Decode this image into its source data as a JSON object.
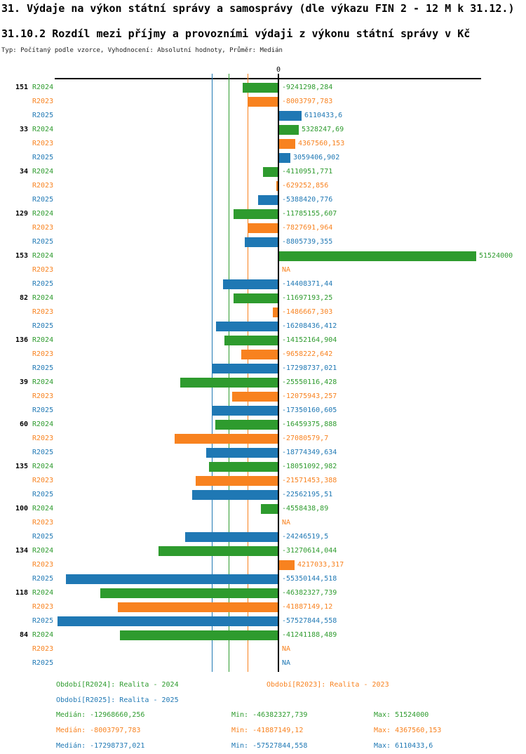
{
  "title": "31. Výdaje na výkon státní správy a samosprávy (dle výkazu FIN 2 - 12 M k 31.12.)",
  "subtitle": "31.10.2 Rozdíl mezi příjmy a provozními výdaji z výkonu státní správy v Kč",
  "meta": "Typ: Počítaný podle vzorce, Vyhodnocení: Absolutní hodnoty, Průměr: Medián",
  "colors": {
    "R2024": "#2e9b2e",
    "R2023": "#f8821f",
    "R2025": "#1f78b4",
    "axis": "#000000"
  },
  "chart_data": {
    "type": "bar",
    "orientation": "horizontal",
    "title": "31.10.2 Rozdíl mezi příjmy a provozními výdaji z výkonu státní správy v Kč",
    "xlabel": "",
    "ylabel": "",
    "zero_tick_label": "0",
    "x_domain": [
      -58320000,
      52830000
    ],
    "grid": "median reference lines per series",
    "legend_position": "bottom",
    "categories": [
      "151",
      "33",
      "34",
      "129",
      "153",
      "82",
      "136",
      "39",
      "60",
      "135",
      "100",
      "134",
      "118",
      "84"
    ],
    "series": [
      {
        "name": "R2024",
        "values": [
          -9241298.284,
          5328247.69,
          -4110951.771,
          -11785155.607,
          51524000,
          -11697193.25,
          -14152164.904,
          -25550116.428,
          -16459375.888,
          -18051092.982,
          -4558438.89,
          -31270614.044,
          -46382327.739,
          -41241188.489
        ],
        "labels": [
          "-9241298,284",
          "5328247,69",
          "-4110951,771",
          "-11785155,607",
          "51524000",
          "-11697193,25",
          "-14152164,904",
          "-25550116,428",
          "-16459375,888",
          "-18051092,982",
          "-4558438,89",
          "-31270614,044",
          "-46382327,739",
          "-41241188,489"
        ],
        "median": -12968660.256,
        "min": -46382327.739,
        "max": 51524000
      },
      {
        "name": "R2023",
        "values": [
          -8003797.783,
          4367560.153,
          -629252.856,
          -7827691.964,
          null,
          -1486667.303,
          -9658222.642,
          -12075943.257,
          -27080579.7,
          -21571453.388,
          null,
          4217033.317,
          -41887149.12,
          null
        ],
        "labels": [
          "-8003797,783",
          "4367560,153",
          "-629252,856",
          "-7827691,964",
          "NA",
          "-1486667,303",
          "-9658222,642",
          "-12075943,257",
          "-27080579,7",
          "-21571453,388",
          "NA",
          "4217033,317",
          "-41887149,12",
          "NA"
        ],
        "median": -8003797.783,
        "min": -41887149.12,
        "max": 4367560.153
      },
      {
        "name": "R2025",
        "values": [
          6110433.6,
          3059406.902,
          -5388420.776,
          -8805739.355,
          -14408371.44,
          -16208436.412,
          -17298737.021,
          -17350160.605,
          -18774349.634,
          -22562195.51,
          -24246519.5,
          -55350144.518,
          -57527844.558,
          null
        ],
        "labels": [
          "6110433,6",
          "3059406,902",
          "-5388420,776",
          "-8805739,355",
          "-14408371,44",
          "-16208436,412",
          "-17298737,021",
          "-17350160,605",
          "-18774349,634",
          "-22562195,51",
          "-24246519,5",
          "-55350144,518",
          "-57527844,558",
          "NA"
        ],
        "median": -17298737.021,
        "min": -57527844.558,
        "max": 6110433.6
      }
    ]
  },
  "legend": {
    "periods": [
      {
        "series": "R2024",
        "label": "Období[R2024]: Realita - 2024"
      },
      {
        "series": "R2023",
        "label": "Období[R2023]: Realita - 2023"
      },
      {
        "series": "R2025",
        "label": "Období[R2025]: Realita - 2025"
      }
    ],
    "stats": [
      {
        "series": "R2024",
        "median": "Medián: -12968660,256",
        "min": "Min: -46382327,739",
        "max": "Max: 51524000"
      },
      {
        "series": "R2023",
        "median": "Medián: -8003797,783",
        "min": "Min: -41887149,12",
        "max": "Max: 4367560,153"
      },
      {
        "series": "R2025",
        "median": "Medián: -17298737,021",
        "min": "Min: -57527844,558",
        "max": "Max: 6110433,6"
      }
    ]
  }
}
